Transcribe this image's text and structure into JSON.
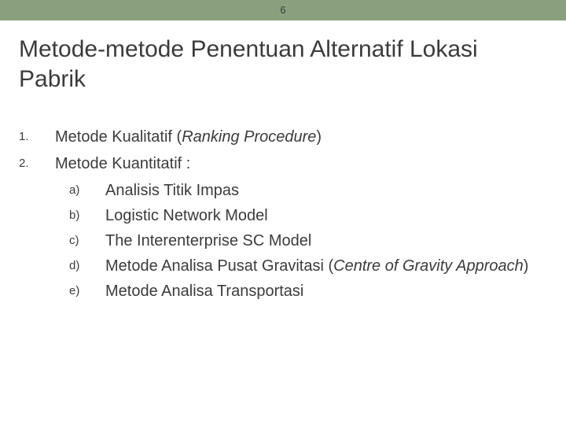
{
  "header": {
    "page_number": "6",
    "bg_color": "#8aa07d"
  },
  "title": "Metode-metode Penentuan Alternatif Lokasi Pabrik",
  "list": {
    "items": [
      {
        "marker": "1.",
        "text_plain": "Metode Kualitatif (",
        "text_italic": "Ranking Procedure",
        "text_after": ")"
      },
      {
        "marker": "2.",
        "text_plain": "Metode Kuantitatif :",
        "text_italic": "",
        "text_after": ""
      }
    ],
    "subitems": [
      {
        "marker": "a)",
        "text_plain": "Analisis Titik Impas",
        "text_italic": "",
        "text_after": ""
      },
      {
        "marker": "b)",
        "text_plain": "Logistic Network Model",
        "text_italic": "",
        "text_after": ""
      },
      {
        "marker": "c)",
        "text_plain": "The Interenterprise SC Model",
        "text_italic": "",
        "text_after": ""
      },
      {
        "marker": "d)",
        "text_plain": "Metode Analisa Pusat Gravitasi (",
        "text_italic": "Centre of Gravity Approach",
        "text_after": ")"
      },
      {
        "marker": "e)",
        "text_plain": "Metode Analisa Transportasi",
        "text_italic": "",
        "text_after": ""
      }
    ]
  },
  "style": {
    "title_fontsize": 30,
    "body_fontsize": 20,
    "marker_fontsize": 15,
    "text_color": "#3b3b3b",
    "background_color": "#ffffff"
  }
}
